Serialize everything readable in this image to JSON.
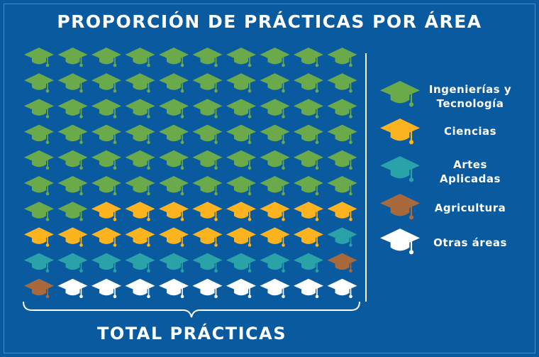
{
  "chart_data": {
    "type": "waffle",
    "title": "PROPORCIÓN DE PRÁCTICAS POR ÁREA",
    "xlabel": "TOTAL PRÁCTICAS",
    "grid": {
      "rows": 10,
      "cols": 10
    },
    "categories": [
      {
        "name": "Ingenierías y Tecnología",
        "count": 62,
        "color": "#6aaa4a"
      },
      {
        "name": "Ciencias",
        "count": 17,
        "color": "#fbb41f"
      },
      {
        "name": "Artes Aplicadas",
        "count": 10,
        "color": "#2aa3a8"
      },
      {
        "name": "Agricultura",
        "count": 2,
        "color": "#a86a3c"
      },
      {
        "name": "Otras áreas",
        "count": 9,
        "color": "#ffffff"
      }
    ],
    "legend_position": "right"
  }
}
